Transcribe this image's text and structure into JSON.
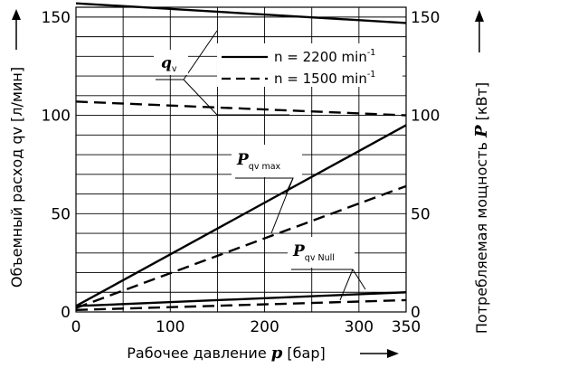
{
  "chart_data": {
    "type": "line",
    "x_label_prefix": "Рабочее давление ",
    "x_label_var": "p",
    "x_label_unit": " [бар]",
    "y_left_label": "Объемный расход qv [л/мин]",
    "y_right_label_prefix": "Потребляемая мощность ",
    "y_right_label_var": "P",
    "y_right_label_unit": " [кВт]",
    "xlim": [
      0,
      350
    ],
    "ylim_left": [
      0,
      155
    ],
    "ylim_right": [
      0,
      155
    ],
    "x_ticks": [
      0,
      100,
      200,
      300,
      350
    ],
    "y_ticks_left": [
      0,
      50,
      100,
      150
    ],
    "y_ticks_right": [
      0,
      50,
      100,
      150
    ],
    "grid": true,
    "legend": [
      {
        "style": "solid",
        "text": "n = 2200 min",
        "sup": "-1"
      },
      {
        "style": "dashed",
        "text": "n = 1500 min",
        "sup": "-1"
      }
    ],
    "annotations": {
      "qv": {
        "main": "q",
        "sub": "v"
      },
      "pmax": {
        "main": "P",
        "sub": "qv max"
      },
      "pnull": {
        "main": "P",
        "sub": "qv Null"
      }
    },
    "series": [
      {
        "group": "qv",
        "style": "solid",
        "x": [
          0,
          350
        ],
        "y": [
          157,
          147
        ]
      },
      {
        "group": "qv",
        "style": "dashed",
        "x": [
          0,
          350
        ],
        "y": [
          107,
          100
        ]
      },
      {
        "group": "P qv max",
        "style": "solid",
        "x": [
          0,
          350
        ],
        "y": [
          3,
          95
        ]
      },
      {
        "group": "P qv max",
        "style": "dashed",
        "x": [
          0,
          350
        ],
        "y": [
          2,
          64
        ]
      },
      {
        "group": "P qv Null",
        "style": "solid",
        "x": [
          0,
          350
        ],
        "y": [
          3,
          10
        ]
      },
      {
        "group": "P qv Null",
        "style": "dashed",
        "x": [
          0,
          350
        ],
        "y": [
          1,
          6
        ]
      }
    ]
  }
}
